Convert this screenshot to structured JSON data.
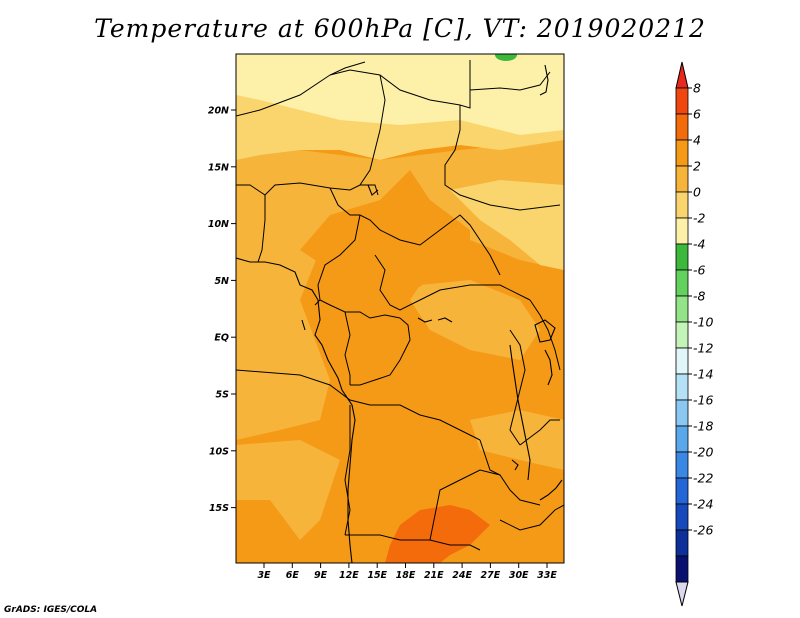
{
  "title": "Temperature at 600hPa [C], VT: 2019020212",
  "credit": "GrADS: IGES/COLA",
  "lat_labels": [
    "20N",
    "15N",
    "10N",
    "5N",
    "EQ",
    "5S",
    "10S",
    "15S"
  ],
  "lon_labels": [
    "3E",
    "6E",
    "9E",
    "12E",
    "15E",
    "18E",
    "21E",
    "24E",
    "27E",
    "30E",
    "33E"
  ],
  "colorbar": {
    "labels": [
      "8",
      "6",
      "4",
      "2",
      "0",
      "-2",
      "-4",
      "-6",
      "-8",
      "-10",
      "-12",
      "-14",
      "-16",
      "-18",
      "-20",
      "-22",
      "-24",
      "-26"
    ],
    "colors": [
      "#e8281a",
      "#f0460f",
      "#f46b0c",
      "#f59a17",
      "#f7b43b",
      "#fad56d",
      "#fdf0a8",
      "#3cb83c",
      "#63d15e",
      "#93e389",
      "#c4f4b8",
      "#e0f6f8",
      "#b5e1f6",
      "#8ac8f2",
      "#5aa8ec",
      "#3b87e4",
      "#2466d8",
      "#1649bc",
      "#0c2f9a",
      "#0a1070",
      "#dcd8f0"
    ]
  },
  "map": {
    "field_colors": {
      "cold": "#fdf0a8",
      "cool": "#fad56d",
      "mild": "#f7b43b",
      "warm": "#f59a17",
      "hot": "#f46b0c",
      "green": "#63d15e"
    }
  }
}
